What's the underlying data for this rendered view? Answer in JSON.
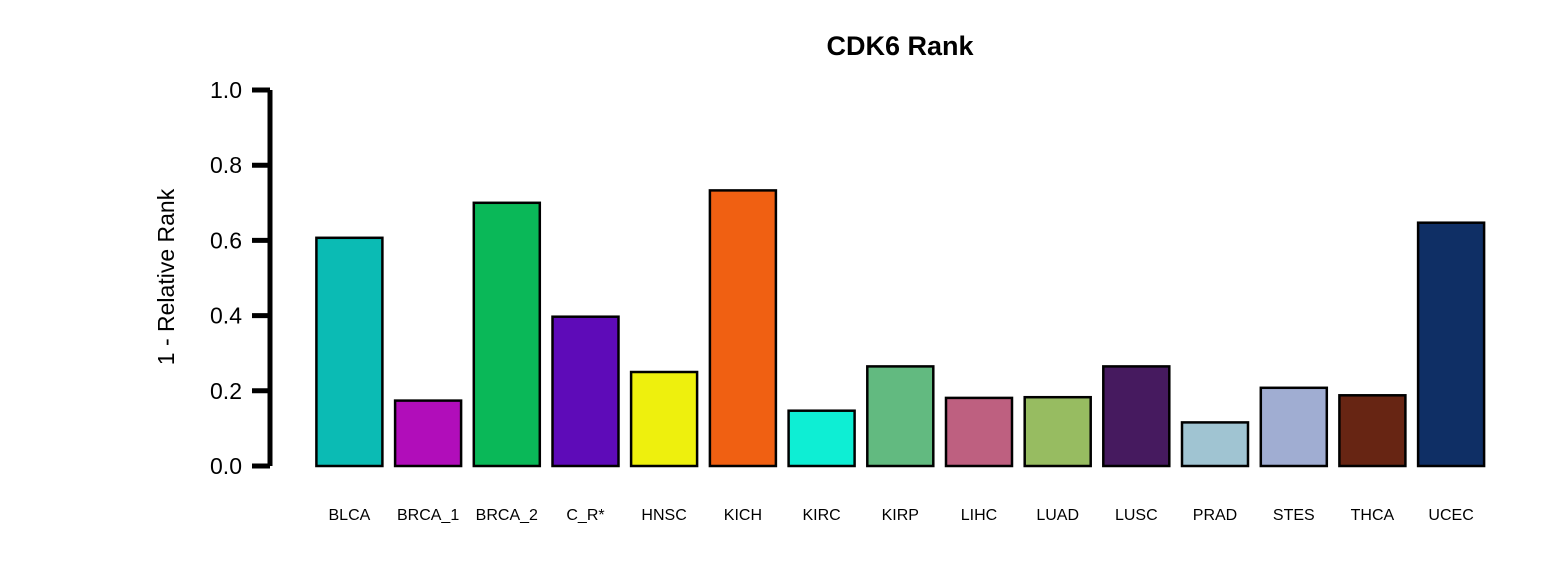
{
  "chart_data": {
    "type": "bar",
    "title": "CDK6 Rank",
    "xlabel": "",
    "ylabel": "1 - Relative Rank",
    "ylim": [
      0,
      1
    ],
    "yticks": [
      "0.0",
      "0.2",
      "0.4",
      "0.6",
      "0.8",
      "1.0"
    ],
    "grid": false,
    "categories": [
      "BLCA",
      "BRCA_1",
      "BRCA_2",
      "C_R*",
      "HNSC",
      "KICH",
      "KIRC",
      "KIRP",
      "LIHC",
      "LUAD",
      "LUSC",
      "PRAD",
      "STES",
      "THCA",
      "UCEC"
    ],
    "values": [
      0.607,
      0.174,
      0.7,
      0.397,
      0.25,
      0.733,
      0.147,
      0.265,
      0.181,
      0.183,
      0.265,
      0.116,
      0.208,
      0.188,
      0.647
    ],
    "colors": [
      "#0BBBB4",
      "#B10DBA",
      "#0AB858",
      "#5E0BB8",
      "#EEF00D",
      "#F06012",
      "#0EEED4",
      "#62BA80",
      "#BE6080",
      "#97BC61",
      "#461A5F",
      "#A0C4D2",
      "#A0ADD2",
      "#672513",
      "#0F2F65"
    ]
  }
}
